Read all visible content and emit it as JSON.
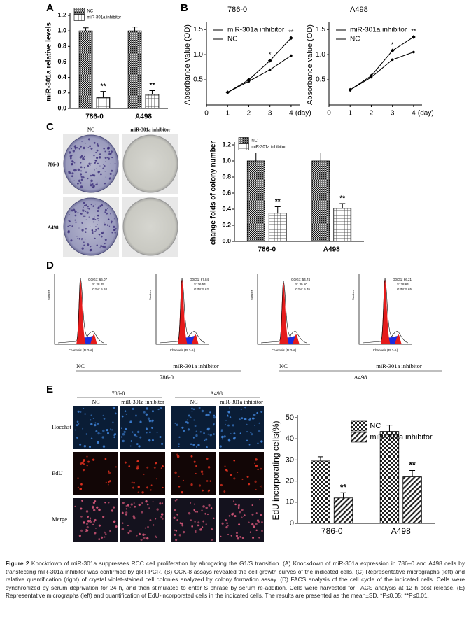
{
  "panel_labels": [
    "A",
    "B",
    "C",
    "D",
    "E"
  ],
  "chart_data": [
    {
      "type": "bar",
      "ylabel": "miR-301a relative levels",
      "categories": [
        "786-0",
        "A498"
      ],
      "series": [
        {
          "name": "NC",
          "pattern": "checker-dark",
          "values": [
            1.0,
            1.0
          ],
          "errors": [
            0.04,
            0.05
          ]
        },
        {
          "name": "miR-301a inhibitor",
          "pattern": "grid",
          "values": [
            0.14,
            0.18
          ],
          "errors": [
            0.08,
            0.05
          ],
          "significance": [
            "**",
            "**"
          ]
        }
      ],
      "ylim": [
        0,
        1.2
      ],
      "yticks": [
        {
          "value": 0,
          "label": "0.0"
        },
        {
          "value": 0.2,
          "label": "0.2"
        },
        {
          "value": 0.4,
          "label": "0.4"
        },
        {
          "value": 0.6,
          "label": "0.6"
        },
        {
          "value": 0.8,
          "label": "0.8"
        },
        {
          "value": 1.0,
          "label": "1.0"
        },
        {
          "value": 1.2,
          "label": "1.2"
        }
      ],
      "legend": "top-left"
    },
    {
      "type": "line",
      "title": "786-0",
      "ylabel": "Absorbance value (OD)",
      "xunit": "(day)",
      "x": [
        1,
        2,
        3,
        4
      ],
      "series": [
        {
          "name": "miR-301a inhibitor",
          "color": "#000000",
          "values": [
            0.25,
            0.5,
            0.88,
            1.33
          ],
          "significance": [
            null,
            null,
            "*",
            "**"
          ]
        },
        {
          "name": "NC",
          "color": "#000000",
          "values": [
            0.25,
            0.47,
            0.7,
            0.98
          ]
        }
      ],
      "xlim": [
        0,
        4.4
      ],
      "xticks": [
        0,
        1,
        2,
        3,
        4
      ],
      "ylim": [
        0,
        1.6
      ],
      "yticks": [
        {
          "value": 0.5,
          "label": "0.5"
        },
        {
          "value": 1.0,
          "label": "1.0"
        },
        {
          "value": 1.5,
          "label": "1.5"
        }
      ],
      "legend": "top-left"
    },
    {
      "type": "line",
      "title": "A498",
      "ylabel": "Absorbance value (OD)",
      "xunit": "(day)",
      "x": [
        1,
        2,
        3,
        4
      ],
      "series": [
        {
          "name": "miR-301a inhibitor",
          "color": "#000000",
          "values": [
            0.3,
            0.58,
            1.08,
            1.35
          ],
          "significance": [
            null,
            null,
            "*",
            "**"
          ]
        },
        {
          "name": "NC",
          "color": "#000000",
          "values": [
            0.3,
            0.55,
            0.9,
            1.05
          ]
        }
      ],
      "xlim": [
        0,
        4.4
      ],
      "xticks": [
        0,
        1,
        2,
        3,
        4
      ],
      "ylim": [
        0,
        1.6
      ],
      "yticks": [
        {
          "value": 0.5,
          "label": "0.5"
        },
        {
          "value": 1.0,
          "label": "1.0"
        },
        {
          "value": 1.5,
          "label": "1.5"
        }
      ],
      "legend": "top-left"
    },
    {
      "type": "bar",
      "ylabel": "change folds of colony number",
      "categories": [
        "786-0",
        "A498"
      ],
      "series": [
        {
          "name": "NC",
          "pattern": "checker-dark",
          "values": [
            1.0,
            1.0
          ],
          "errors": [
            0.1,
            0.1
          ]
        },
        {
          "name": "miR-301a inhibitor",
          "pattern": "grid",
          "values": [
            0.35,
            0.41
          ],
          "errors": [
            0.08,
            0.06
          ],
          "significance": [
            "**",
            "**"
          ]
        }
      ],
      "ylim": [
        0,
        1.2
      ],
      "yticks": [
        {
          "value": 0,
          "label": "0.0"
        },
        {
          "value": 0.2,
          "label": "0.2"
        },
        {
          "value": 0.4,
          "label": "0.4"
        },
        {
          "value": 0.6,
          "label": "0.6"
        },
        {
          "value": 0.8,
          "label": "0.8"
        },
        {
          "value": 1.0,
          "label": "1.0"
        },
        {
          "value": 1.2,
          "label": "1.2"
        }
      ],
      "legend": "top-left"
    },
    {
      "type": "bar",
      "ylabel": "EdU incorporating cells(%)",
      "categories": [
        "786-0",
        "A498"
      ],
      "series": [
        {
          "name": "NC",
          "pattern": "checker",
          "values": [
            29.5,
            43.5
          ],
          "errors": [
            2,
            3
          ]
        },
        {
          "name": "miR-301a inhibitor",
          "pattern": "stripes",
          "values": [
            12,
            22
          ],
          "errors": [
            2.5,
            3
          ],
          "significance": [
            "**",
            "**"
          ]
        }
      ],
      "ylim": [
        0,
        50
      ],
      "yticks": [
        0,
        10,
        20,
        30,
        40,
        50
      ],
      "legend": "top-right"
    }
  ],
  "colony": {
    "columns": [
      "NC",
      "miR-301a inhibitor"
    ],
    "rows": [
      "786-0",
      "A498"
    ]
  },
  "facs": {
    "ylabel": "Number",
    "xlabel": "Channels (FL2-A)",
    "panels": [
      {
        "stats": [
          "G0/G1: 66.07",
          "S: 28.25",
          "G2M: 5.68"
        ]
      },
      {
        "stats": [
          "G0/G1: 67.84",
          "S: 26.54",
          "G2M: 5.62"
        ]
      },
      {
        "stats": [
          "G0/G1: 54.74",
          "S: 39.50",
          "G2M: 5.76"
        ]
      },
      {
        "stats": [
          "G0/G1: 66.21",
          "S: 28.64",
          "G2M: 5.65"
        ]
      }
    ],
    "conditions": [
      "NC",
      "miR-301a inhibitor",
      "NC",
      "miR-301a inhibitor"
    ],
    "cell_lines": [
      "786-0",
      "A498"
    ]
  },
  "edu": {
    "cell_lines": [
      "786-0",
      "A498"
    ],
    "columns": [
      "NC",
      "miR-301a inhibitor",
      "NC",
      "miR-301a inhibitor"
    ],
    "rows": [
      "Hoechst",
      "EdU",
      "Merge"
    ]
  },
  "caption": {
    "label": "Figure 2",
    "text": "Knockdown of miR-301a suppresses RCC cell proliferation by abrogating the G1/S transition. (A) Knockdown of miR-301a expression in 786–0 and A498 cells by transfecting miR-301a inhibitor was confirmed by qRT-PCR. (B) CCK-8 assays revealed the cell growth curves of the indicated cells. (C) Representative micrographs (left) and relative quantification (right) of crystal violet-stained cell colonies analyzed by colony formation assay. (D) FACS analysis of the cell cycle of the indicated cells. Cells were synchronized by serum deprivation for 24 h, and then stimulated to enter S phrase by serum re-addition. Cells were harvested for FACS analysis at 12 h post release. (E) Representative micrographs (left) and quantification of EdU-incorporated cells in the indicated cells. The results are presented as the mean±SD. *P≤0.05; **P≤0.01."
  }
}
